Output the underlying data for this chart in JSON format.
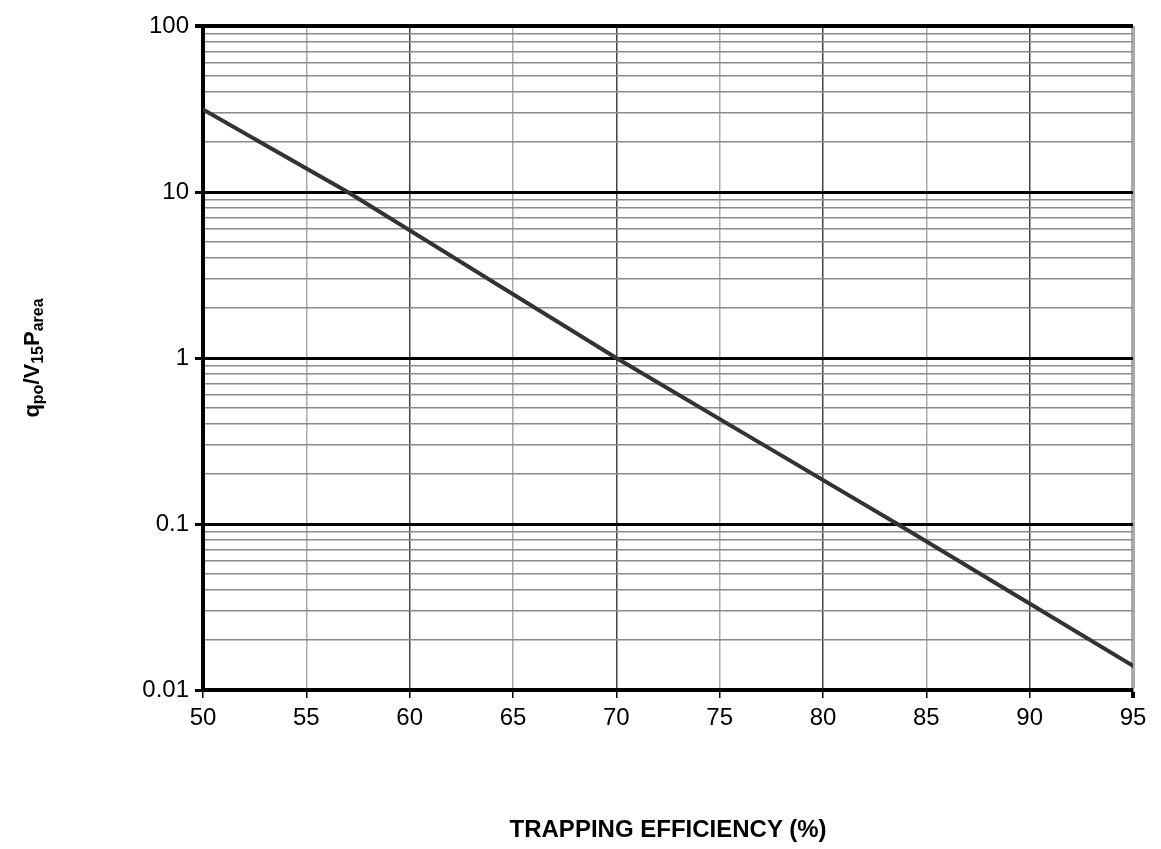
{
  "chart_data": {
    "type": "line",
    "xlabel": "TRAPPING EFFICIENCY (%)",
    "ylabel": "q$_{po}$/V$_{15}$P$_{area}$",
    "x": [
      50,
      57,
      70,
      83.6,
      95
    ],
    "series": [
      {
        "color": "#333333",
        "values": [
          31.4,
          10,
          1,
          0.1,
          0.014
        ]
      }
    ],
    "xlim": [
      50,
      95
    ],
    "xticks": [
      50,
      55,
      60,
      65,
      70,
      75,
      80,
      85,
      90,
      95
    ],
    "ylim": [
      0.01,
      100
    ],
    "yticks": [
      0.01,
      {
        "value": 0.02,
        "label": null
      },
      {
        "value": 0.03,
        "label": null
      },
      {
        "value": 0.04,
        "label": null
      },
      {
        "value": 0.05,
        "label": null
      },
      {
        "value": 0.06,
        "label": null
      },
      {
        "value": 0.07,
        "label": null
      },
      {
        "value": 0.08,
        "label": null
      },
      {
        "value": 0.09,
        "label": null
      },
      0.1,
      {
        "value": 0.2,
        "label": null
      },
      {
        "value": 0.3,
        "label": null
      },
      {
        "value": 0.4,
        "label": null
      },
      {
        "value": 0.5,
        "label": null
      },
      {
        "value": 0.6,
        "label": null
      },
      {
        "value": 0.7,
        "label": null
      },
      {
        "value": 0.8,
        "label": null
      },
      {
        "value": 0.9,
        "label": null
      },
      1,
      {
        "value": 2,
        "label": null
      },
      {
        "value": 3,
        "label": null
      },
      {
        "value": 4,
        "label": null
      },
      {
        "value": 5,
        "label": null
      },
      {
        "value": 6,
        "label": null
      },
      {
        "value": 7,
        "label": null
      },
      {
        "value": 8,
        "label": null
      },
      {
        "value": 9,
        "label": null
      },
      10,
      {
        "value": 20,
        "label": null
      },
      {
        "value": 30,
        "label": null
      },
      {
        "value": 40,
        "label": null
      },
      {
        "value": 50,
        "label": null
      },
      {
        "value": 60,
        "label": null
      },
      {
        "value": 70,
        "label": null
      },
      {
        "value": 80,
        "label": null
      },
      {
        "value": 90,
        "label": null
      },
      100
    ],
    "log": "y",
    "grid": true,
    "legend": false,
    "marker": "none",
    "line_style": "solid"
  }
}
